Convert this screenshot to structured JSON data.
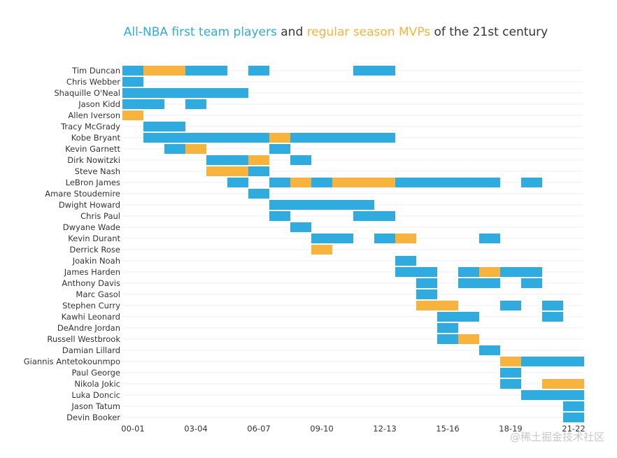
{
  "chart_data": {
    "type": "gantt",
    "title_parts": [
      {
        "text": "All-NBA first team players",
        "role": "first_team"
      },
      {
        "text": " and ",
        "role": "plain"
      },
      {
        "text": "regular season MVPs",
        "role": "mvp"
      },
      {
        "text": " of the 21st century",
        "role": "plain"
      }
    ],
    "colors": {
      "first_team": "#2fabe0",
      "mvp": "#f8b33c",
      "plain": "#333333",
      "grid": "#eeeeee",
      "text": "#333333"
    },
    "x_ticks": [
      "00-01",
      "03-04",
      "06-07",
      "09-10",
      "12-13",
      "15-16",
      "18-19",
      "21-22"
    ],
    "season_range": [
      0,
      22
    ],
    "players": [
      {
        "name": "Tim Duncan",
        "segments": [
          [
            0,
            1,
            "first_team"
          ],
          [
            1,
            3,
            "mvp"
          ],
          [
            3,
            5,
            "first_team"
          ],
          [
            6,
            7,
            "first_team"
          ],
          [
            11,
            13,
            "first_team"
          ]
        ]
      },
      {
        "name": "Chris Webber",
        "segments": [
          [
            0,
            1,
            "first_team"
          ]
        ]
      },
      {
        "name": "Shaquille O'Neal",
        "segments": [
          [
            0,
            6,
            "first_team"
          ]
        ]
      },
      {
        "name": "Jason Kidd",
        "segments": [
          [
            0,
            2,
            "first_team"
          ],
          [
            3,
            4,
            "first_team"
          ]
        ]
      },
      {
        "name": "Allen Iverson",
        "segments": [
          [
            0,
            1,
            "mvp"
          ]
        ]
      },
      {
        "name": "Tracy McGrady",
        "segments": [
          [
            1,
            3,
            "first_team"
          ]
        ]
      },
      {
        "name": "Kobe Bryant",
        "segments": [
          [
            1,
            7,
            "first_team"
          ],
          [
            7,
            8,
            "mvp"
          ],
          [
            8,
            13,
            "first_team"
          ]
        ]
      },
      {
        "name": "Kevin Garnett",
        "segments": [
          [
            2,
            3,
            "first_team"
          ],
          [
            3,
            4,
            "mvp"
          ],
          [
            7,
            8,
            "first_team"
          ]
        ]
      },
      {
        "name": "Dirk Nowitzki",
        "segments": [
          [
            4,
            6,
            "first_team"
          ],
          [
            6,
            7,
            "mvp"
          ],
          [
            8,
            9,
            "first_team"
          ]
        ]
      },
      {
        "name": "Steve Nash",
        "segments": [
          [
            4,
            6,
            "mvp"
          ],
          [
            6,
            7,
            "first_team"
          ]
        ]
      },
      {
        "name": "LeBron James",
        "segments": [
          [
            5,
            6,
            "first_team"
          ],
          [
            7,
            8,
            "first_team"
          ],
          [
            8,
            9,
            "mvp"
          ],
          [
            9,
            10,
            "first_team"
          ],
          [
            10,
            13,
            "mvp"
          ],
          [
            13,
            18,
            "first_team"
          ],
          [
            19,
            20,
            "first_team"
          ]
        ]
      },
      {
        "name": "Amare Stoudemire",
        "segments": [
          [
            6,
            7,
            "first_team"
          ]
        ]
      },
      {
        "name": "Dwight Howard",
        "segments": [
          [
            7,
            12,
            "first_team"
          ]
        ]
      },
      {
        "name": "Chris Paul",
        "segments": [
          [
            7,
            8,
            "first_team"
          ],
          [
            11,
            13,
            "first_team"
          ]
        ]
      },
      {
        "name": "Dwyane Wade",
        "segments": [
          [
            8,
            9,
            "first_team"
          ]
        ]
      },
      {
        "name": "Kevin Durant",
        "segments": [
          [
            9,
            11,
            "first_team"
          ],
          [
            12,
            13,
            "first_team"
          ],
          [
            13,
            14,
            "mvp"
          ],
          [
            17,
            18,
            "first_team"
          ]
        ]
      },
      {
        "name": "Derrick Rose",
        "segments": [
          [
            9,
            10,
            "mvp"
          ]
        ]
      },
      {
        "name": "Joakin Noah",
        "segments": [
          [
            13,
            14,
            "first_team"
          ]
        ]
      },
      {
        "name": "James Harden",
        "segments": [
          [
            13,
            15,
            "first_team"
          ],
          [
            16,
            17,
            "first_team"
          ],
          [
            17,
            18,
            "mvp"
          ],
          [
            18,
            20,
            "first_team"
          ]
        ]
      },
      {
        "name": "Anthony Davis",
        "segments": [
          [
            14,
            15,
            "first_team"
          ],
          [
            16,
            18,
            "first_team"
          ],
          [
            19,
            20,
            "first_team"
          ]
        ]
      },
      {
        "name": "Marc Gasol",
        "segments": [
          [
            14,
            15,
            "first_team"
          ]
        ]
      },
      {
        "name": "Stephen Curry",
        "segments": [
          [
            14,
            16,
            "mvp"
          ],
          [
            18,
            19,
            "first_team"
          ],
          [
            20,
            21,
            "first_team"
          ]
        ]
      },
      {
        "name": "Kawhi Leonard",
        "segments": [
          [
            15,
            17,
            "first_team"
          ],
          [
            20,
            21,
            "first_team"
          ]
        ]
      },
      {
        "name": "DeAndre Jordan",
        "segments": [
          [
            15,
            16,
            "first_team"
          ]
        ]
      },
      {
        "name": "Russell Westbrook",
        "segments": [
          [
            15,
            16,
            "first_team"
          ],
          [
            16,
            17,
            "mvp"
          ]
        ]
      },
      {
        "name": "Damian Lillard",
        "segments": [
          [
            17,
            18,
            "first_team"
          ]
        ]
      },
      {
        "name": "Giannis Antetokounmpo",
        "segments": [
          [
            18,
            19,
            "mvp"
          ],
          [
            19,
            22,
            "first_team"
          ]
        ]
      },
      {
        "name": "Paul George",
        "segments": [
          [
            18,
            19,
            "first_team"
          ]
        ]
      },
      {
        "name": "Nikola Jokic",
        "segments": [
          [
            18,
            19,
            "first_team"
          ],
          [
            20,
            22,
            "mvp"
          ]
        ]
      },
      {
        "name": "Luka Doncic",
        "segments": [
          [
            19,
            22,
            "first_team"
          ]
        ]
      },
      {
        "name": "Jason Tatum",
        "segments": [
          [
            21,
            22,
            "first_team"
          ]
        ]
      },
      {
        "name": "Devin Booker",
        "segments": [
          [
            21,
            22,
            "first_team"
          ]
        ]
      }
    ]
  },
  "watermark": "@稀土掘金技术社区"
}
